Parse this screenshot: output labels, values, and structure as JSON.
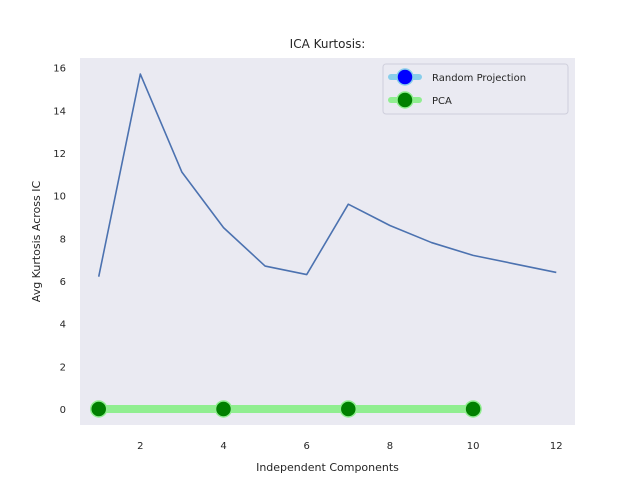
{
  "chart_data": {
    "type": "line",
    "title": "ICA Kurtosis:",
    "xlabel": "Independent Components",
    "ylabel": "Avg Kurtosis Across IC",
    "xlim": [
      0.55,
      12.45
    ],
    "ylim": [
      -0.75,
      16.45
    ],
    "xticks": [
      2,
      4,
      6,
      8,
      10,
      12
    ],
    "yticks": [
      0,
      2,
      4,
      6,
      8,
      10,
      12,
      14,
      16
    ],
    "grid": false,
    "legend_position": "top-right",
    "background_color": "#eaeaf2",
    "series": [
      {
        "x": [
          1,
          2,
          3,
          4,
          5,
          6,
          7,
          8,
          9,
          10,
          11,
          12
        ],
        "y": [
          6.2,
          15.7,
          11.1,
          8.5,
          6.7,
          6.3,
          9.6,
          8.6,
          7.8,
          7.2,
          6.8,
          6.4
        ],
        "color": "#4c72b0",
        "style": "line"
      },
      {
        "name": "Random Projection",
        "x": [],
        "y": [],
        "color": "#87ceeb",
        "marker_color": "#0000ff",
        "style": "line-marker"
      },
      {
        "name": "PCA",
        "x": [
          1,
          4,
          7,
          10
        ],
        "y": [
          0,
          0,
          0,
          0
        ],
        "color": "#90ee90",
        "marker_color": "#008000",
        "style": "line-marker"
      }
    ]
  }
}
